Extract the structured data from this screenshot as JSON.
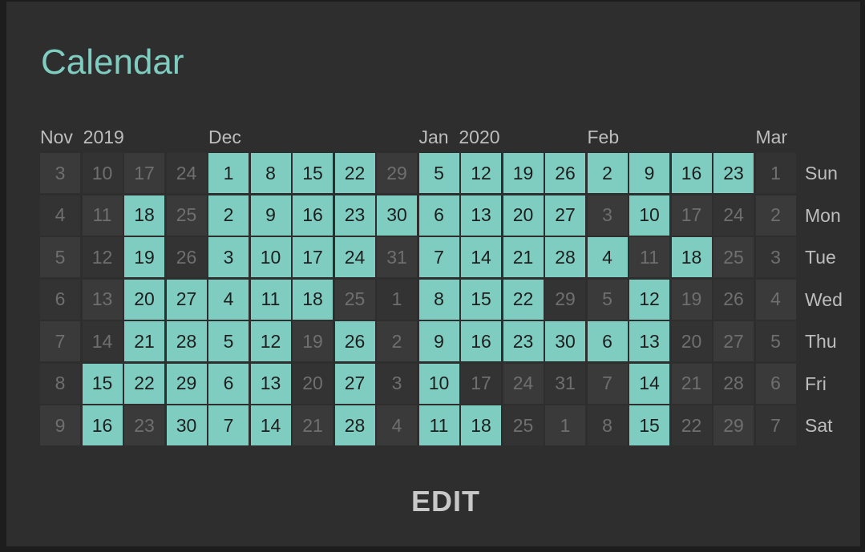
{
  "title": "Calendar",
  "month_labels": [
    {
      "col": 0,
      "text": "Nov  2019"
    },
    {
      "col": 4,
      "text": "Dec"
    },
    {
      "col": 9,
      "text": "Jan  2020"
    },
    {
      "col": 13,
      "text": "Feb"
    },
    {
      "col": 17,
      "text": "Mar"
    }
  ],
  "day_labels": [
    "Sun",
    "Mon",
    "Tue",
    "Wed",
    "Thu",
    "Fri",
    "Sat"
  ],
  "weeks": [
    {
      "days": [
        "3",
        "4",
        "5",
        "6",
        "7",
        "8",
        "9"
      ],
      "marked": [
        false,
        false,
        false,
        false,
        false,
        false,
        false
      ]
    },
    {
      "days": [
        "10",
        "11",
        "12",
        "13",
        "14",
        "15",
        "16"
      ],
      "marked": [
        false,
        false,
        false,
        false,
        false,
        true,
        true
      ]
    },
    {
      "days": [
        "17",
        "18",
        "19",
        "20",
        "21",
        "22",
        "23"
      ],
      "marked": [
        false,
        true,
        true,
        true,
        true,
        true,
        false
      ]
    },
    {
      "days": [
        "24",
        "25",
        "26",
        "27",
        "28",
        "29",
        "30"
      ],
      "marked": [
        false,
        false,
        false,
        true,
        true,
        true,
        true
      ]
    },
    {
      "days": [
        "1",
        "2",
        "3",
        "4",
        "5",
        "6",
        "7"
      ],
      "marked": [
        true,
        true,
        true,
        true,
        true,
        true,
        true
      ]
    },
    {
      "days": [
        "8",
        "9",
        "10",
        "11",
        "12",
        "13",
        "14"
      ],
      "marked": [
        true,
        true,
        true,
        true,
        true,
        true,
        true
      ]
    },
    {
      "days": [
        "15",
        "16",
        "17",
        "18",
        "19",
        "20",
        "21"
      ],
      "marked": [
        true,
        true,
        true,
        true,
        false,
        false,
        false
      ]
    },
    {
      "days": [
        "22",
        "23",
        "24",
        "25",
        "26",
        "27",
        "28"
      ],
      "marked": [
        true,
        true,
        true,
        false,
        true,
        true,
        true
      ]
    },
    {
      "days": [
        "29",
        "30",
        "31",
        "1",
        "2",
        "3",
        "4"
      ],
      "marked": [
        false,
        true,
        false,
        false,
        false,
        false,
        false
      ]
    },
    {
      "days": [
        "5",
        "6",
        "7",
        "8",
        "9",
        "10",
        "11"
      ],
      "marked": [
        true,
        true,
        true,
        true,
        true,
        true,
        true
      ]
    },
    {
      "days": [
        "12",
        "13",
        "14",
        "15",
        "16",
        "17",
        "18"
      ],
      "marked": [
        true,
        true,
        true,
        true,
        true,
        false,
        true
      ]
    },
    {
      "days": [
        "19",
        "20",
        "21",
        "22",
        "23",
        "24",
        "25"
      ],
      "marked": [
        true,
        true,
        true,
        true,
        true,
        false,
        false
      ]
    },
    {
      "days": [
        "26",
        "27",
        "28",
        "29",
        "30",
        "31",
        "1"
      ],
      "marked": [
        true,
        true,
        true,
        false,
        true,
        false,
        false
      ]
    },
    {
      "days": [
        "2",
        "3",
        "4",
        "5",
        "6",
        "7",
        "8"
      ],
      "marked": [
        true,
        false,
        true,
        false,
        true,
        false,
        false
      ]
    },
    {
      "days": [
        "9",
        "10",
        "11",
        "12",
        "13",
        "14",
        "15"
      ],
      "marked": [
        true,
        true,
        false,
        true,
        true,
        true,
        true
      ]
    },
    {
      "days": [
        "16",
        "17",
        "18",
        "19",
        "20",
        "21",
        "22"
      ],
      "marked": [
        true,
        false,
        true,
        false,
        false,
        false,
        false
      ]
    },
    {
      "days": [
        "23",
        "24",
        "25",
        "26",
        "27",
        "28",
        "29"
      ],
      "marked": [
        true,
        false,
        false,
        false,
        false,
        false,
        false
      ]
    },
    {
      "days": [
        "1",
        "2",
        "3",
        "4",
        "5",
        "6",
        "7"
      ],
      "marked": [
        false,
        false,
        false,
        false,
        false,
        false,
        false
      ]
    }
  ],
  "edit_button": "EDIT",
  "colors": {
    "accent": "#7fcdc1",
    "card_background": "#2e2e2e",
    "cell_inactive": "#3a3a3a",
    "label_text": "#bdbdbd"
  }
}
